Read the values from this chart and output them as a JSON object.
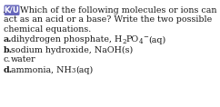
{
  "badge_text": "K/U",
  "badge_bg": "#6666BB",
  "badge_fg": "#FFFFFF",
  "line1": "Which of the following molecules or ions can",
  "line2": "act as an acid or a base? Write the two possible",
  "line3": "chemical equations.",
  "item_a_label": "a.",
  "item_a_text": "dihydrogen phosphate, H",
  "item_a_sub1": "2",
  "item_a_mid": "PO",
  "item_a_sub2": "4",
  "item_a_sup": "−",
  "item_a_end": "(aq)",
  "item_b_label": "b.",
  "item_b_text": "sodium hydroxide, NaOH(s)",
  "item_c_label": "c.",
  "item_c_text": "water",
  "item_d_label": "d.",
  "item_d_text": "ammonia, NH",
  "item_d_sub": "3",
  "item_d_end": "(aq)",
  "font_size": 6.8,
  "sub_font_size": 5.0,
  "background_color": "#FFFFFF",
  "text_color": "#1a1a1a",
  "leading_dot": "."
}
